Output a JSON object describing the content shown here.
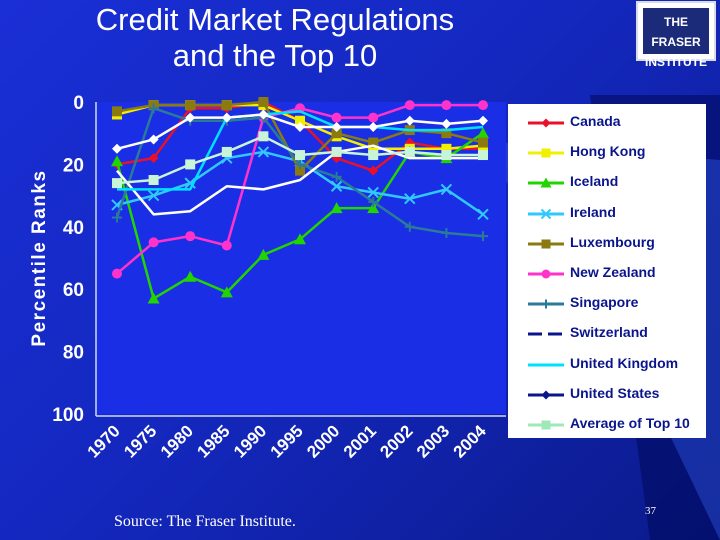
{
  "slide": {
    "title_line1": "Credit Market Regulations",
    "title_line2": "and the Top 10",
    "logo_line1": "THE FRASER",
    "logo_line2": "INSTITUTE",
    "source": "Source: The Fraser Institute.",
    "page_number": "37"
  },
  "colors": {
    "background": "#1a2fd6",
    "plot_area": "#1a2ee6",
    "text": "#ffffff",
    "legend_text": "#0a158c"
  },
  "chart_data": {
    "type": "line",
    "ylabel": "Percentile Ranks",
    "xlabel": "",
    "ylim": [
      0,
      100
    ],
    "y_inverted": true,
    "y_ticks": [
      "0",
      "20",
      "40",
      "60",
      "80",
      "100"
    ],
    "y_tick_values": [
      0,
      20,
      40,
      60,
      80,
      100
    ],
    "categories": [
      "1970",
      "1975",
      "1980",
      "1985",
      "1990",
      "1995",
      "2000",
      "2001",
      "2002",
      "2003",
      "2004"
    ],
    "grid": false,
    "legend_position": "right",
    "series": [
      {
        "name": "Canada",
        "color": "#e8102a",
        "marker": "diamond",
        "values": [
          20,
          18,
          2,
          2,
          0,
          6,
          18,
          22,
          13,
          15,
          15
        ]
      },
      {
        "name": "Hong Kong",
        "color": "#f0f000",
        "marker": "square",
        "values": [
          4,
          1,
          1,
          1,
          1,
          6,
          11,
          15,
          15,
          15,
          14
        ]
      },
      {
        "name": "Iceland",
        "color": "#22d400",
        "marker": "triangle",
        "values": [
          19,
          63,
          56,
          61,
          49,
          44,
          34,
          34,
          16,
          18,
          10
        ]
      },
      {
        "name": "Ireland",
        "color": "#30c8ff",
        "marker": "x",
        "values": [
          33,
          30,
          26,
          18,
          16,
          19,
          27,
          29,
          31,
          28,
          36
        ]
      },
      {
        "name": "Luxembourg",
        "color": "#8a7a10",
        "marker": "square",
        "values": [
          3,
          1,
          1,
          1,
          0,
          22,
          10,
          13,
          9,
          10,
          13
        ]
      },
      {
        "name": "New Zealand",
        "color": "#ff33cc",
        "marker": "circle",
        "values": [
          55,
          45,
          43,
          46,
          5,
          2,
          5,
          5,
          1,
          1,
          1
        ]
      },
      {
        "name": "Singapore",
        "color": "#2a7a9a",
        "marker": "plus",
        "values": [
          37,
          2,
          6,
          6,
          5,
          20,
          24,
          32,
          40,
          42,
          43
        ]
      },
      {
        "name": "Switzerland",
        "color": "#ffffff",
        "marker": "none",
        "values": [
          22,
          36,
          35,
          27,
          28,
          25,
          16,
          14,
          18,
          18,
          18
        ]
      },
      {
        "name": "United Kingdom",
        "color": "#00e0ff",
        "marker": "none",
        "values": [
          28,
          28,
          28,
          5,
          4,
          3,
          8,
          8,
          9,
          9,
          8
        ]
      },
      {
        "name": "United States",
        "color": "#ffffff",
        "marker": "diamond",
        "values": [
          15,
          12,
          5,
          5,
          4,
          8,
          8,
          8,
          6,
          7,
          6
        ]
      },
      {
        "name": "Average of Top 10",
        "color": "#c8f5d8",
        "marker": "square",
        "values": [
          26,
          25,
          20,
          16,
          11,
          17,
          16,
          17,
          16,
          17,
          17
        ]
      }
    ]
  }
}
